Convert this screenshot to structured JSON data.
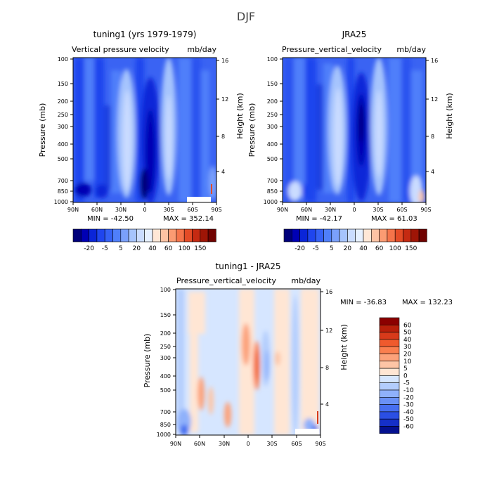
{
  "figure_title": "DJF",
  "chart_data": [
    {
      "type": "heatmap",
      "id": "tuning1",
      "title": "tuning1 (yrs 1979-1979)",
      "subtitle": "Vertical pressure velocity",
      "units": "mb/day",
      "xlabel": "",
      "ylabel": "Pressure (mb)",
      "y2label": "Height (km)",
      "x_ticks": [
        "90N",
        "60N",
        "30N",
        "0",
        "30S",
        "60S",
        "90S"
      ],
      "y_ticks": [
        "100",
        "150",
        "200",
        "250",
        "300",
        "400",
        "500",
        "700",
        "850",
        "1000"
      ],
      "y2_ticks": [
        "16",
        "12",
        "8",
        "4"
      ],
      "min_label": "MIN = -42.50",
      "max_label": "MAX = 352.14",
      "colorbar_labels": [
        "-20",
        "-5",
        "5",
        "20",
        "40",
        "60",
        "100",
        "150"
      ],
      "colors": [
        "#00007a",
        "#0000b4",
        "#0a25d8",
        "#1f45ee",
        "#3561f5",
        "#4f7ffa",
        "#7aa0fb",
        "#a6c4fd",
        "#cadcff",
        "#e6f0ff",
        "#ffe7d6",
        "#fdc3a3",
        "#fb9b72",
        "#f5744a",
        "#e44b26",
        "#c52a12",
        "#9e1506",
        "#700200"
      ]
    },
    {
      "type": "heatmap",
      "id": "jra25",
      "title": "JRA25",
      "subtitle": "Pressure_vertical_velocity",
      "units": "mb/day",
      "xlabel": "",
      "ylabel": "Pressure (mb)",
      "y2label": "Height (km)",
      "x_ticks": [
        "90N",
        "60N",
        "30N",
        "0",
        "30S",
        "60S",
        "90S"
      ],
      "y_ticks": [
        "100",
        "150",
        "200",
        "250",
        "300",
        "400",
        "500",
        "700",
        "850",
        "1000"
      ],
      "y2_ticks": [
        "16",
        "12",
        "8",
        "4"
      ],
      "min_label": "MIN = -42.17",
      "max_label": "MAX = 61.03",
      "colorbar_labels": [
        "-20",
        "-5",
        "5",
        "20",
        "40",
        "60",
        "100",
        "150"
      ]
    },
    {
      "type": "heatmap",
      "id": "diff",
      "title": "tuning1 - JRA25",
      "subtitle": "Pressure_vertical_velocity",
      "units": "mb/day",
      "xlabel": "",
      "ylabel": "Pressure (mb)",
      "y2label": "Height (km)",
      "x_ticks": [
        "90N",
        "60N",
        "30N",
        "0",
        "30S",
        "60S",
        "90S"
      ],
      "y_ticks": [
        "100",
        "150",
        "200",
        "250",
        "300",
        "400",
        "500",
        "700",
        "850",
        "1000"
      ],
      "y2_ticks": [
        "16",
        "12",
        "8",
        "4"
      ],
      "min_label": "MIN = -36.83",
      "max_label": "MAX = 132.23",
      "colorbar_labels": [
        "60",
        "50",
        "40",
        "30",
        "20",
        "10",
        "5",
        "0",
        "-5",
        "-10",
        "-20",
        "-30",
        "-40",
        "-50",
        "-60"
      ],
      "colors": [
        "#8b0000",
        "#b81f0a",
        "#d83a1a",
        "#ef5a2d",
        "#fa7f4f",
        "#fca27a",
        "#fdc5a6",
        "#ffe6d4",
        "#d6e6ff",
        "#b3cdfd",
        "#8fb1fb",
        "#6a91f6",
        "#476ff0",
        "#2b4fe3",
        "#1530c8",
        "#04108f"
      ]
    }
  ]
}
